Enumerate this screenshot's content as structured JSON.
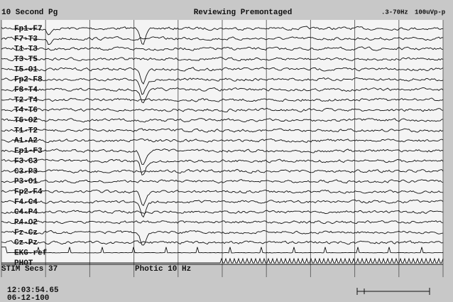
{
  "header": {
    "page": "10 Second Pg",
    "mode": "Reviewing Premontaged",
    "filter": ".3-70Hz",
    "sensitivity": "100uVp-p"
  },
  "channels": [
    "Fp1-F7",
    "F7-T3",
    "T1-T3",
    "T3-T5",
    "T5-O1",
    "Fp2-F8",
    "F8-T4",
    "T2-T4",
    "T4-T6",
    "T6-O2",
    "T1-T2",
    "A1-A2",
    "Fp1-F3",
    "F3-C3",
    "C3-P3",
    "P3-O1",
    "Fp2-F4",
    "F4-C4",
    "C4-P4",
    "P4-O2",
    "Fz-Cz",
    "Cz-Pz",
    "EKG-ref",
    "PHOT"
  ],
  "status": {
    "stim": "STIM Secs 37",
    "photic": "Photic 10 Hz"
  },
  "footer": {
    "time": "12:03:54.65",
    "date": "06-12-100"
  }
}
